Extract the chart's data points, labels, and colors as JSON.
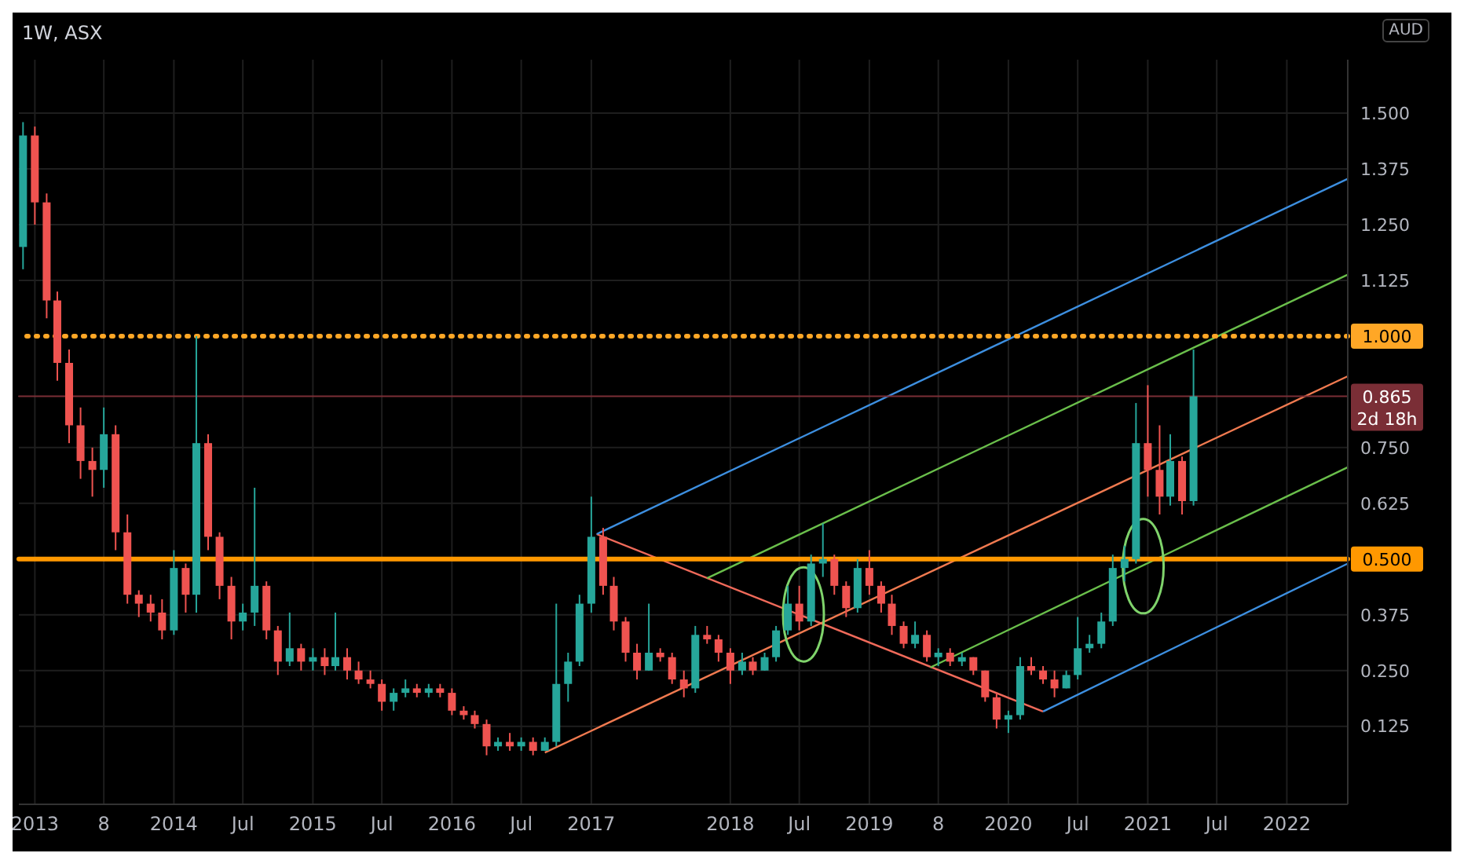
{
  "chart_data": {
    "type": "candlestick",
    "title": "1W, ASX",
    "ylabel": "AUD",
    "x": [
      "2012-12",
      "2013-01",
      "2013-02",
      "2013-03",
      "2013-04",
      "2013-05",
      "2013-06",
      "2013-07",
      "2013-08",
      "2013-09",
      "2013-10",
      "2013-11",
      "2013-12",
      "2014-01",
      "2014-02",
      "2014-03",
      "2014-04",
      "2014-05",
      "2014-06",
      "2014-07",
      "2014-08",
      "2014-09",
      "2014-10",
      "2014-11",
      "2014-12",
      "2015-01",
      "2015-02",
      "2015-03",
      "2015-04",
      "2015-05",
      "2015-06",
      "2015-07",
      "2015-08",
      "2015-09",
      "2015-10",
      "2015-11",
      "2015-12",
      "2016-01",
      "2016-02",
      "2016-03",
      "2016-04",
      "2016-05",
      "2016-06",
      "2016-07",
      "2016-08",
      "2016-09",
      "2016-10",
      "2016-11",
      "2016-12",
      "2017-01",
      "2017-02",
      "2017-03",
      "2017-04",
      "2017-05",
      "2017-06",
      "2017-07",
      "2017-08",
      "2017-09",
      "2017-10",
      "2017-11",
      "2017-12",
      "2018-01",
      "2018-02",
      "2018-03",
      "2018-04",
      "2018-05",
      "2018-06",
      "2018-07",
      "2018-08",
      "2018-09",
      "2018-10",
      "2018-11",
      "2018-12",
      "2019-01",
      "2019-02",
      "2019-03",
      "2019-04",
      "2019-05",
      "2019-06",
      "2019-07",
      "2019-08",
      "2019-09",
      "2019-10",
      "2019-11",
      "2019-12",
      "2020-01",
      "2020-02",
      "2020-03",
      "2020-04",
      "2020-05",
      "2020-06",
      "2020-07",
      "2020-08",
      "2020-09",
      "2020-10",
      "2020-11",
      "2020-12",
      "2021-01",
      "2021-02",
      "2021-03",
      "2021-04",
      "2021-05"
    ],
    "ohlc": [
      [
        1.2,
        1.48,
        1.15,
        1.45
      ],
      [
        1.45,
        1.47,
        1.25,
        1.3
      ],
      [
        1.3,
        1.32,
        1.04,
        1.08
      ],
      [
        1.08,
        1.1,
        0.9,
        0.94
      ],
      [
        0.94,
        0.97,
        0.76,
        0.8
      ],
      [
        0.8,
        0.84,
        0.68,
        0.72
      ],
      [
        0.72,
        0.75,
        0.64,
        0.7
      ],
      [
        0.7,
        0.84,
        0.66,
        0.78
      ],
      [
        0.78,
        0.8,
        0.52,
        0.56
      ],
      [
        0.56,
        0.6,
        0.4,
        0.42
      ],
      [
        0.42,
        0.43,
        0.37,
        0.4
      ],
      [
        0.4,
        0.42,
        0.36,
        0.38
      ],
      [
        0.38,
        0.41,
        0.32,
        0.34
      ],
      [
        0.34,
        0.52,
        0.33,
        0.48
      ],
      [
        0.48,
        0.49,
        0.38,
        0.42
      ],
      [
        0.42,
        1.0,
        0.38,
        0.76
      ],
      [
        0.76,
        0.78,
        0.52,
        0.55
      ],
      [
        0.55,
        0.56,
        0.41,
        0.44
      ],
      [
        0.44,
        0.46,
        0.32,
        0.36
      ],
      [
        0.36,
        0.4,
        0.34,
        0.38
      ],
      [
        0.38,
        0.66,
        0.35,
        0.44
      ],
      [
        0.44,
        0.45,
        0.32,
        0.34
      ],
      [
        0.34,
        0.35,
        0.24,
        0.27
      ],
      [
        0.27,
        0.38,
        0.26,
        0.3
      ],
      [
        0.3,
        0.31,
        0.25,
        0.27
      ],
      [
        0.27,
        0.3,
        0.25,
        0.28
      ],
      [
        0.28,
        0.3,
        0.24,
        0.26
      ],
      [
        0.26,
        0.38,
        0.25,
        0.28
      ],
      [
        0.28,
        0.3,
        0.23,
        0.25
      ],
      [
        0.25,
        0.27,
        0.22,
        0.23
      ],
      [
        0.23,
        0.25,
        0.21,
        0.22
      ],
      [
        0.22,
        0.23,
        0.16,
        0.18
      ],
      [
        0.18,
        0.21,
        0.16,
        0.2
      ],
      [
        0.2,
        0.23,
        0.19,
        0.21
      ],
      [
        0.21,
        0.22,
        0.19,
        0.2
      ],
      [
        0.2,
        0.22,
        0.19,
        0.21
      ],
      [
        0.21,
        0.22,
        0.19,
        0.2
      ],
      [
        0.2,
        0.21,
        0.15,
        0.16
      ],
      [
        0.16,
        0.17,
        0.14,
        0.15
      ],
      [
        0.15,
        0.16,
        0.12,
        0.13
      ],
      [
        0.13,
        0.14,
        0.06,
        0.08
      ],
      [
        0.08,
        0.1,
        0.07,
        0.09
      ],
      [
        0.09,
        0.11,
        0.07,
        0.08
      ],
      [
        0.08,
        0.1,
        0.07,
        0.09
      ],
      [
        0.09,
        0.1,
        0.06,
        0.07
      ],
      [
        0.07,
        0.1,
        0.07,
        0.09
      ],
      [
        0.09,
        0.4,
        0.08,
        0.22
      ],
      [
        0.22,
        0.29,
        0.18,
        0.27
      ],
      [
        0.27,
        0.42,
        0.26,
        0.4
      ],
      [
        0.4,
        0.64,
        0.38,
        0.55
      ],
      [
        0.55,
        0.57,
        0.42,
        0.44
      ],
      [
        0.44,
        0.46,
        0.34,
        0.36
      ],
      [
        0.36,
        0.37,
        0.27,
        0.29
      ],
      [
        0.29,
        0.31,
        0.23,
        0.25
      ],
      [
        0.25,
        0.4,
        0.25,
        0.29
      ],
      [
        0.29,
        0.3,
        0.27,
        0.28
      ],
      [
        0.28,
        0.29,
        0.22,
        0.23
      ],
      [
        0.23,
        0.25,
        0.19,
        0.21
      ],
      [
        0.21,
        0.35,
        0.2,
        0.33
      ],
      [
        0.33,
        0.35,
        0.31,
        0.32
      ],
      [
        0.32,
        0.33,
        0.27,
        0.29
      ],
      [
        0.29,
        0.3,
        0.22,
        0.25
      ],
      [
        0.25,
        0.29,
        0.24,
        0.27
      ],
      [
        0.27,
        0.28,
        0.24,
        0.25
      ],
      [
        0.25,
        0.29,
        0.25,
        0.28
      ],
      [
        0.28,
        0.35,
        0.27,
        0.34
      ],
      [
        0.34,
        0.44,
        0.33,
        0.4
      ],
      [
        0.4,
        0.44,
        0.34,
        0.36
      ],
      [
        0.36,
        0.51,
        0.35,
        0.49
      ],
      [
        0.49,
        0.58,
        0.46,
        0.5
      ],
      [
        0.5,
        0.51,
        0.42,
        0.44
      ],
      [
        0.44,
        0.45,
        0.37,
        0.39
      ],
      [
        0.39,
        0.5,
        0.38,
        0.48
      ],
      [
        0.48,
        0.52,
        0.42,
        0.44
      ],
      [
        0.44,
        0.45,
        0.38,
        0.4
      ],
      [
        0.4,
        0.42,
        0.33,
        0.35
      ],
      [
        0.35,
        0.36,
        0.3,
        0.31
      ],
      [
        0.31,
        0.36,
        0.3,
        0.33
      ],
      [
        0.33,
        0.34,
        0.27,
        0.28
      ],
      [
        0.28,
        0.3,
        0.26,
        0.29
      ],
      [
        0.29,
        0.3,
        0.26,
        0.27
      ],
      [
        0.27,
        0.29,
        0.26,
        0.28
      ],
      [
        0.28,
        0.28,
        0.24,
        0.25
      ],
      [
        0.25,
        0.25,
        0.18,
        0.19
      ],
      [
        0.19,
        0.2,
        0.12,
        0.14
      ],
      [
        0.14,
        0.16,
        0.11,
        0.15
      ],
      [
        0.15,
        0.28,
        0.14,
        0.26
      ],
      [
        0.26,
        0.28,
        0.24,
        0.25
      ],
      [
        0.25,
        0.26,
        0.22,
        0.23
      ],
      [
        0.23,
        0.25,
        0.19,
        0.21
      ],
      [
        0.21,
        0.25,
        0.21,
        0.24
      ],
      [
        0.24,
        0.37,
        0.23,
        0.3
      ],
      [
        0.3,
        0.33,
        0.29,
        0.31
      ],
      [
        0.31,
        0.38,
        0.3,
        0.36
      ],
      [
        0.36,
        0.51,
        0.35,
        0.48
      ],
      [
        0.48,
        0.53,
        0.45,
        0.5
      ],
      [
        0.5,
        0.85,
        0.49,
        0.76
      ],
      [
        0.76,
        0.89,
        0.64,
        0.7
      ],
      [
        0.7,
        0.8,
        0.6,
        0.64
      ],
      [
        0.64,
        0.78,
        0.62,
        0.72
      ],
      [
        0.72,
        0.73,
        0.6,
        0.63
      ],
      [
        0.63,
        0.97,
        0.62,
        0.865
      ]
    ],
    "series": [
      {
        "type": "line",
        "color": "#f06a5a",
        "x": [
          "2017-01-15",
          "2020-04-01"
        ],
        "values": [
          0.556,
          0.158
        ]
      },
      {
        "type": "line",
        "color": "#f07a50",
        "x": [
          "2016-09-01",
          "2022-06-10"
        ],
        "values": [
          0.066,
          0.91
        ]
      },
      {
        "type": "line",
        "color": "#3d8fe0",
        "x": [
          "2017-01-15",
          "2022-06-10"
        ],
        "values": [
          0.556,
          1.353
        ]
      },
      {
        "type": "line",
        "color": "#3d8fe0",
        "x": [
          "2020-04-01",
          "2022-06-10"
        ],
        "values": [
          0.158,
          0.49
        ]
      },
      {
        "type": "line",
        "color": "#6abf4b",
        "x": [
          "2017-11-01",
          "2022-06-10"
        ],
        "values": [
          0.457,
          1.138
        ]
      },
      {
        "type": "line",
        "color": "#6abf4b",
        "x": [
          "2019-06-10",
          "2022-06-10"
        ],
        "values": [
          0.257,
          0.706
        ]
      }
    ],
    "xlim": [
      "2012-11-20",
      "2022-06-10"
    ],
    "xticks": [
      "2013",
      {
        "value": "2013-07",
        "label": "8"
      },
      "2014",
      {
        "value": "2014-07",
        "label": "Jul"
      },
      "2015",
      {
        "value": "2015-07",
        "label": "Jul"
      },
      "2016",
      {
        "value": "2016-07",
        "label": "Jul"
      },
      "2017",
      "2018",
      {
        "value": "2018-07",
        "label": "Jul"
      },
      "2019",
      {
        "value": "2019-07",
        "label": "8"
      },
      "2020",
      {
        "value": "2020-07",
        "label": "Jul"
      },
      "2021",
      {
        "value": "2021-07",
        "label": "Jul"
      },
      "2022"
    ],
    "ylim": [
      -0.05,
      1.62
    ],
    "yticks": [
      {
        "value": 0.125,
        "label": "0.125"
      },
      {
        "value": 0.25,
        "label": "0.250"
      },
      {
        "value": 0.375,
        "label": "0.375"
      },
      {
        "value": 0.625,
        "label": "0.625"
      },
      {
        "value": 0.75,
        "label": "0.750"
      },
      {
        "value": 1.125,
        "label": "1.125"
      },
      {
        "value": 1.25,
        "label": "1.250"
      },
      {
        "value": 1.375,
        "label": "1.375"
      },
      {
        "value": 1.5,
        "label": "1.500"
      }
    ],
    "ref_lines": [
      {
        "axis": "y",
        "value": 1.0,
        "label": "1.000",
        "color": "#ffa726",
        "line_style": "dotted"
      },
      {
        "axis": "y",
        "value": 0.5,
        "label": "0.500",
        "color": "#ff9800",
        "line_style": "solid"
      },
      {
        "axis": "y",
        "value": 0.865,
        "label": "0.865",
        "color": "#7a2e36",
        "line_style": "solid"
      }
    ],
    "annotations": [
      "2d 18h"
    ],
    "grid": true
  }
}
